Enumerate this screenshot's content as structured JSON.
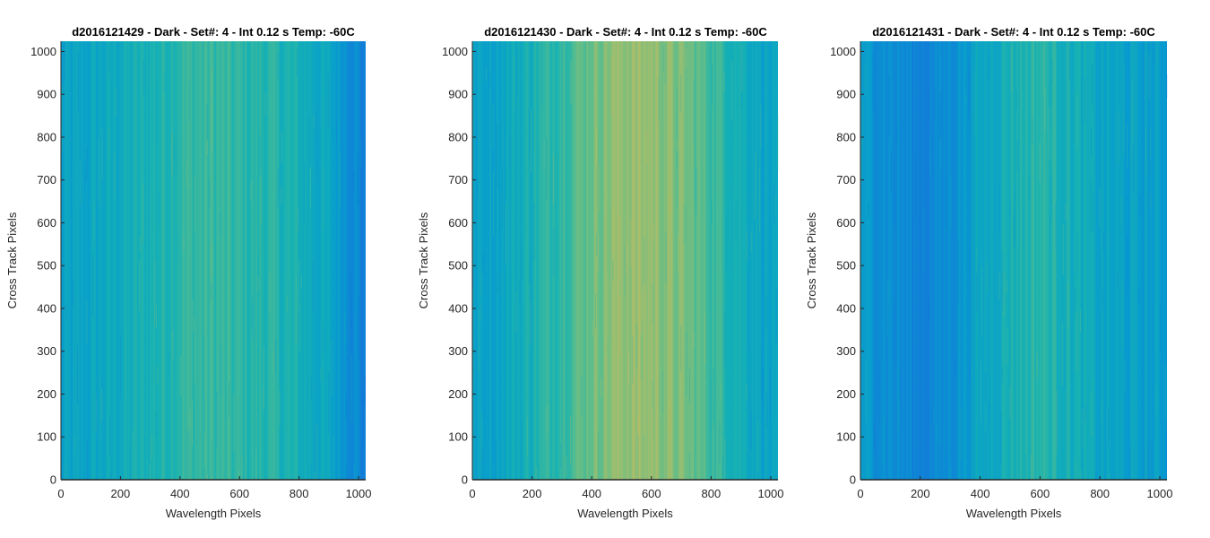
{
  "chart_data": [
    {
      "type": "heatmap",
      "title": "d2016121429 - Dark - Set#: 4 - Int 0.12 s Temp: -60C",
      "xlabel": "Wavelength Pixels",
      "ylabel": "Cross Track Pixels",
      "xlim": [
        0,
        1024
      ],
      "ylim": [
        0,
        1024
      ],
      "xticks": [
        0,
        200,
        400,
        600,
        800,
        1000
      ],
      "yticks": [
        0,
        100,
        200,
        300,
        400,
        500,
        600,
        700,
        800,
        900,
        1000
      ],
      "colormap": "parula",
      "column_profile": {
        "x": [
          0,
          100,
          200,
          300,
          400,
          500,
          600,
          700,
          800,
          900,
          1000,
          1024
        ],
        "level": [
          0.42,
          0.44,
          0.47,
          0.5,
          0.54,
          0.55,
          0.53,
          0.52,
          0.49,
          0.44,
          0.34,
          0.3
        ]
      }
    },
    {
      "type": "heatmap",
      "title": "d2016121430 - Dark - Set#: 4 - Int 0.12 s Temp: -60C",
      "xlabel": "Wavelength Pixels",
      "ylabel": "Cross Track Pixels",
      "xlim": [
        0,
        1024
      ],
      "ylim": [
        0,
        1024
      ],
      "xticks": [
        0,
        200,
        400,
        600,
        800,
        1000
      ],
      "yticks": [
        0,
        100,
        200,
        300,
        400,
        500,
        600,
        700,
        800,
        900,
        1000
      ],
      "colormap": "parula",
      "column_profile": {
        "x": [
          0,
          100,
          200,
          300,
          400,
          500,
          600,
          700,
          800,
          900,
          1000,
          1024
        ],
        "level": [
          0.42,
          0.45,
          0.5,
          0.56,
          0.63,
          0.68,
          0.68,
          0.64,
          0.57,
          0.49,
          0.43,
          0.41
        ]
      }
    },
    {
      "type": "heatmap",
      "title": "d2016121431 - Dark - Set#: 4 - Int 0.12 s Temp: -60C",
      "xlabel": "Wavelength Pixels",
      "ylabel": "Cross Track Pixels",
      "xlim": [
        0,
        1024
      ],
      "ylim": [
        0,
        1024
      ],
      "xticks": [
        0,
        200,
        400,
        600,
        800,
        1000
      ],
      "yticks": [
        0,
        100,
        200,
        300,
        400,
        500,
        600,
        700,
        800,
        900,
        1000
      ],
      "colormap": "parula",
      "column_profile": {
        "x": [
          0,
          100,
          200,
          300,
          400,
          500,
          600,
          700,
          800,
          900,
          1000,
          1024
        ],
        "level": [
          0.4,
          0.36,
          0.32,
          0.36,
          0.44,
          0.5,
          0.53,
          0.49,
          0.44,
          0.42,
          0.41,
          0.41
        ]
      }
    }
  ]
}
